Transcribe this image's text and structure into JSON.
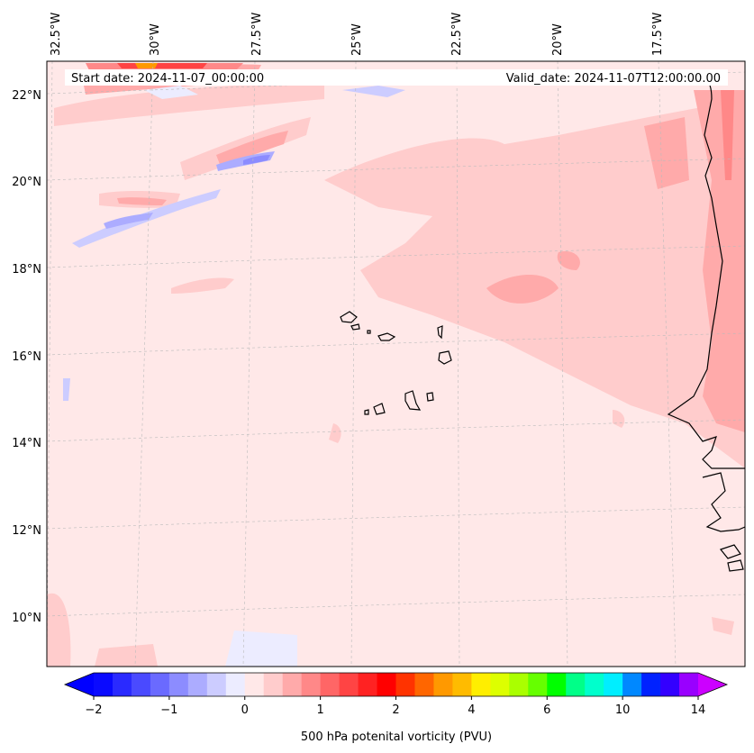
{
  "map": {
    "start_date_label": "Start date: 2024-11-07_00:00:00",
    "valid_date_label": "Valid_date: 2024-11-07T12:00:00.00",
    "lon_labels": [
      "32.5°W",
      "30°W",
      "27.5°W",
      "25°W",
      "22.5°W",
      "20°W",
      "17.5°W"
    ],
    "lat_labels": [
      "22°N",
      "20°N",
      "18°N",
      "16°N",
      "14°N",
      "12°N",
      "10°N"
    ],
    "land_outline_color": "#000000",
    "gridline_color": "#bbbbbb"
  },
  "colorbar": {
    "title": "500 hPa potenital vorticity (PVU)",
    "tick_labels": [
      "−2",
      "−1",
      "0",
      "1",
      "2",
      "4",
      "6",
      "10",
      "14"
    ],
    "colors": [
      "#0a0aff",
      "#2a2aff",
      "#4a4aff",
      "#6a6aff",
      "#8c8cff",
      "#acacff",
      "#ccccff",
      "#ececff",
      "#ffe8e8",
      "#ffcccc",
      "#ffaaaa",
      "#ff8888",
      "#ff6666",
      "#ff4444",
      "#ff2222",
      "#ff0000",
      "#ff3300",
      "#ff6600",
      "#ff9900",
      "#ffbb00",
      "#ffee00",
      "#ddff00",
      "#aaff00",
      "#66ff00",
      "#00ff00",
      "#00ff88",
      "#00ffcc",
      "#00eeff",
      "#0088ff",
      "#0022ff",
      "#3300ff",
      "#9900ff"
    ],
    "under_color": "#0000ff",
    "over_color": "#cc00ff"
  }
}
